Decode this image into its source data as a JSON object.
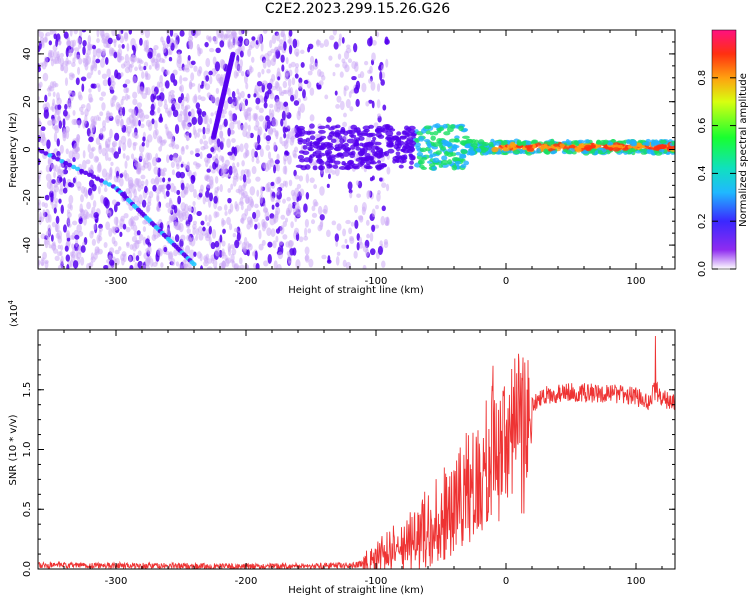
{
  "title": "C2E2.2023.299.15.26.G26",
  "chart_data": [
    {
      "type": "heatmap",
      "title": "C2E2.2023.299.15.26.G26",
      "xlabel": "Height of straight line (km)",
      "ylabel": "Frequency (Hz)",
      "xlim": [
        -360,
        130
      ],
      "ylim": [
        -50,
        50
      ],
      "xticks": [
        -300,
        -200,
        -100,
        0,
        100
      ],
      "xtick_labels": [
        "-300",
        "-200",
        "-100",
        "0",
        "100"
      ],
      "yticks": [
        -40,
        -20,
        0,
        20,
        40
      ],
      "ytick_labels": [
        "-40",
        "-20",
        "0",
        "20",
        "40"
      ],
      "features": [
        {
          "name": "descending track",
          "x": [
            -360,
            -300,
            -270,
            -240
          ],
          "y": [
            0,
            -16,
            -32,
            -48
          ]
        },
        {
          "name": "near-vertical track",
          "x": [
            -210,
            -225
          ],
          "y": [
            40,
            5
          ]
        },
        {
          "name": "noise region",
          "x_range": [
            -360,
            -110
          ],
          "y_range": [
            -50,
            50
          ]
        },
        {
          "name": "carrier near 0 Hz",
          "x_range": [
            -160,
            130
          ],
          "y_center": 1
        }
      ],
      "colorbar": {
        "label": "Normalized spectral amplitude",
        "range": [
          0,
          1
        ],
        "ticks": [
          0.0,
          0.2,
          0.4,
          0.6,
          0.8
        ],
        "tick_labels": [
          "0.0",
          "0.2",
          "0.4",
          "0.6",
          "0.8"
        ]
      }
    },
    {
      "type": "line",
      "xlabel": "Height of straight line (km)",
      "ylabel": "SNR (10 * v/v)",
      "scale_label": "(x10",
      "scale_exponent": "4",
      "scale_close": ")",
      "xlim": [
        -360,
        130
      ],
      "ylim": [
        0,
        2
      ],
      "xticks": [
        -300,
        -200,
        -100,
        0,
        100
      ],
      "xtick_labels": [
        "-300",
        "-200",
        "-100",
        "0",
        "100"
      ],
      "yticks": [
        0.0,
        0.5,
        1.0,
        1.5
      ],
      "ytick_labels": [
        "0.0",
        "0.5",
        "1.0",
        "1.5"
      ],
      "series": [
        {
          "name": "SNR",
          "color": "#ee3333",
          "x": [
            -360,
            -300,
            -200,
            -120,
            -100,
            -90,
            -80,
            -70,
            -60,
            -50,
            -40,
            -30,
            -20,
            -10,
            0,
            10,
            20,
            30,
            50,
            70,
            90,
            100,
            110,
            115,
            120,
            130
          ],
          "values": [
            0.03,
            0.03,
            0.02,
            0.03,
            0.06,
            0.15,
            0.22,
            0.25,
            0.35,
            0.45,
            0.5,
            0.7,
            0.8,
            1.0,
            1.1,
            1.25,
            1.38,
            1.45,
            1.48,
            1.47,
            1.46,
            1.44,
            1.4,
            1.5,
            1.42,
            1.4
          ]
        }
      ],
      "peaks": [
        {
          "x": -10,
          "value": 1.7
        },
        {
          "x": 115,
          "value": 1.95
        }
      ]
    }
  ],
  "colors": {
    "snr_line": "#ee3333",
    "spectrum_dark": "#5500ee",
    "spectrum_light": "#c9a6f5"
  }
}
